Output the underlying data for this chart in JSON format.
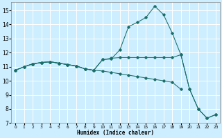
{
  "xlabel": "Humidex (Indice chaleur)",
  "bg_color": "#cceeff",
  "grid_color": "#ffffff",
  "line_color": "#1a6e6a",
  "xlim": [
    -0.5,
    23.5
  ],
  "ylim": [
    7,
    15.6
  ],
  "yticks": [
    7,
    8,
    9,
    10,
    11,
    12,
    13,
    14,
    15
  ],
  "xticks": [
    0,
    1,
    2,
    3,
    4,
    5,
    6,
    7,
    8,
    9,
    10,
    11,
    12,
    13,
    14,
    15,
    16,
    17,
    18,
    19,
    20,
    21,
    22,
    23
  ],
  "series1_x": [
    0,
    1,
    2,
    3,
    4,
    5,
    6,
    7,
    8,
    9,
    10,
    11,
    12,
    13,
    14,
    15,
    16,
    17,
    18,
    19,
    20,
    21,
    22,
    23
  ],
  "series1_y": [
    10.75,
    11.0,
    11.2,
    11.3,
    11.35,
    11.25,
    11.15,
    11.05,
    10.85,
    10.75,
    11.5,
    11.55,
    12.2,
    13.85,
    14.15,
    14.5,
    15.3,
    14.7,
    13.4,
    11.85,
    9.4,
    8.0,
    7.35,
    7.6
  ],
  "series2_x": [
    0,
    1,
    2,
    3,
    4,
    5,
    6,
    7,
    8,
    9,
    10,
    11,
    12,
    13,
    14,
    15,
    16,
    17,
    18,
    19,
    20,
    21,
    22,
    23
  ],
  "series2_y": [
    10.75,
    11.0,
    11.2,
    11.3,
    11.35,
    11.25,
    11.15,
    11.05,
    10.85,
    10.75,
    11.5,
    11.6,
    11.65,
    11.65,
    11.65,
    11.65,
    11.65,
    11.65,
    11.65,
    11.85,
    9.4,
    8.0,
    7.35,
    7.6
  ],
  "series3_x": [
    0,
    1,
    2,
    3,
    4,
    5,
    6,
    7,
    8,
    9,
    10,
    11,
    12,
    13,
    14,
    15,
    16,
    17,
    18,
    19,
    20,
    21,
    22,
    23
  ],
  "series3_y": [
    10.75,
    11.0,
    11.2,
    11.3,
    11.35,
    11.25,
    11.15,
    11.05,
    10.85,
    10.75,
    10.7,
    10.6,
    10.5,
    10.4,
    10.3,
    10.2,
    10.1,
    10.0,
    9.9,
    9.4,
    8.0,
    7.35,
    7.6,
    null
  ]
}
